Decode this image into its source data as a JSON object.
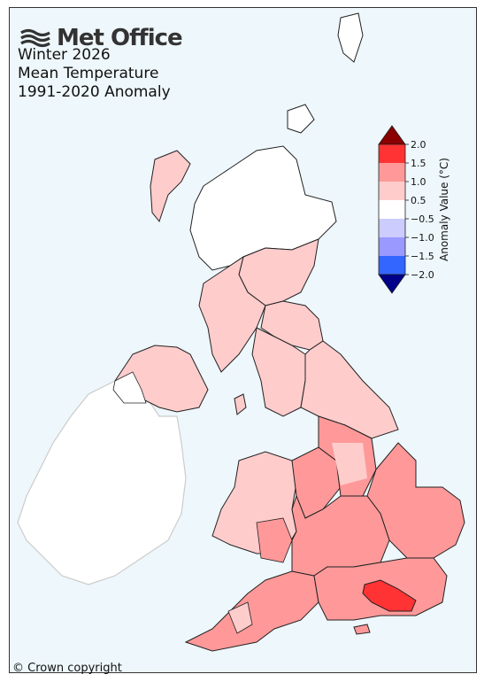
{
  "brand": {
    "name": "Met Office",
    "logo_icon": "met-office-wave-logo"
  },
  "title": {
    "line1": "Winter 2026",
    "line2": "Mean Temperature",
    "line3": "1991-2020 Anomaly"
  },
  "copyright": "© Crown copyright",
  "legend": {
    "title": "Anomaly Value (°C)",
    "ticks": [
      "2.0",
      "1.5",
      "1.0",
      "0.5",
      "−0.5",
      "−1.0",
      "−1.5",
      "−2.0"
    ],
    "bins": [
      {
        "range": "> 2.0",
        "color": "#8b0000"
      },
      {
        "range": "1.5 to 2.0",
        "color": "#ff3333"
      },
      {
        "range": "1.0 to 1.5",
        "color": "#ff9999"
      },
      {
        "range": "0.5 to 1.0",
        "color": "#ffcccc"
      },
      {
        "range": "-0.5 to 0.5",
        "color": "#ffffff"
      },
      {
        "range": "-1.0 to -0.5",
        "color": "#ccccff"
      },
      {
        "range": "-1.5 to -1.0",
        "color": "#9999ff"
      },
      {
        "range": "-2.0 to -1.5",
        "color": "#3366ff"
      },
      {
        "range": "< -2.0",
        "color": "#00008b"
      }
    ]
  },
  "regions": [
    {
      "name": "Northern Scotland",
      "category": "-0.5 to 0.5",
      "color": "#ffffff"
    },
    {
      "name": "Western Isles",
      "category": "0.5 to 1.0",
      "color": "#ffcccc"
    },
    {
      "name": "Eastern Scotland",
      "category": "0.5 to 1.0",
      "color": "#ffcccc"
    },
    {
      "name": "Western Scotland",
      "category": "0.5 to 1.0",
      "color": "#ffcccc"
    },
    {
      "name": "Northern Ireland",
      "category": "0.5 to 1.0",
      "color": "#ffcccc"
    },
    {
      "name": "North East England",
      "category": "0.5 to 1.0",
      "color": "#ffcccc"
    },
    {
      "name": "North West England",
      "category": "0.5 to 1.0",
      "color": "#ffcccc"
    },
    {
      "name": "Yorkshire",
      "category": "0.5 to 1.0",
      "color": "#ffcccc"
    },
    {
      "name": "Wales",
      "category": "0.5 to 1.0",
      "color": "#ffcccc"
    },
    {
      "name": "East Midlands",
      "category": "1.0 to 1.5",
      "color": "#ff9999"
    },
    {
      "name": "West Midlands",
      "category": "1.0 to 1.5",
      "color": "#ff9999"
    },
    {
      "name": "East of England",
      "category": "1.0 to 1.5",
      "color": "#ff9999"
    },
    {
      "name": "South West England",
      "category": "1.0 to 1.5",
      "color": "#ff9999"
    },
    {
      "name": "South East England",
      "category": "1.0 to 1.5",
      "color": "#ff9999"
    },
    {
      "name": "Sussex Weald",
      "category": "1.5 to 2.0",
      "color": "#ff3333"
    },
    {
      "name": "Ireland",
      "category": "not mapped",
      "color": "#ffffff"
    }
  ]
}
